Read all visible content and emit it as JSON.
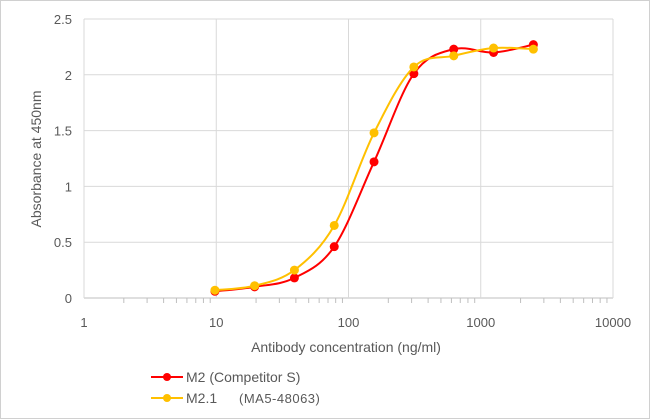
{
  "chart_data": {
    "type": "line",
    "xlabel": "Antibody concentration (ng/ml)",
    "ylabel": "Absorbance at 450nm",
    "xscale": "log",
    "xlim": [
      1,
      10000
    ],
    "ylim": [
      0,
      2.5
    ],
    "xticks": [
      "1",
      "10",
      "100",
      "1000",
      "10000"
    ],
    "yticks": [
      "0",
      "0.5",
      "1",
      "1.5",
      "2",
      "2.5"
    ],
    "grid": true,
    "legend_position": "bottom-left",
    "x": [
      9.77,
      19.5,
      39,
      78,
      156,
      312,
      625,
      1250,
      2500
    ],
    "series": [
      {
        "name": "M2 (Competitor S)",
        "color": "#FF0000",
        "values": [
          0.06,
          0.1,
          0.18,
          0.46,
          1.22,
          2.01,
          2.23,
          2.2,
          2.27
        ]
      },
      {
        "name": "M2.1",
        "name_suffix": "(MA5-48063)",
        "color": "#FFC000",
        "values": [
          0.07,
          0.11,
          0.25,
          0.65,
          1.48,
          2.07,
          2.17,
          2.24,
          2.23
        ]
      }
    ]
  }
}
